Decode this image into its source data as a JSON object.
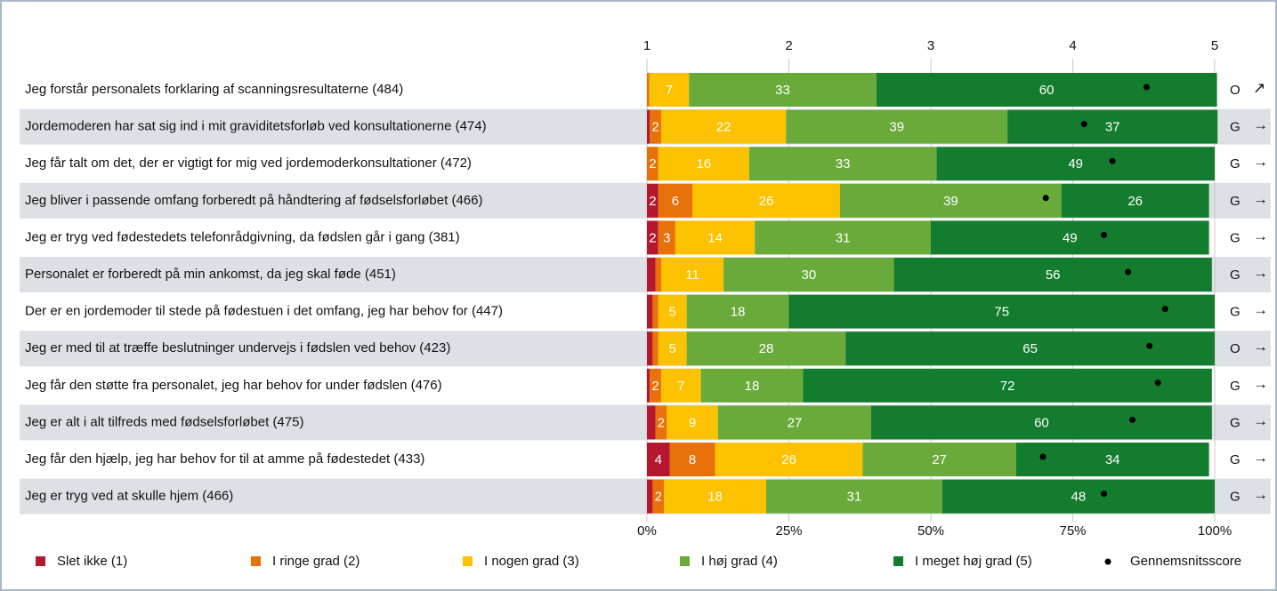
{
  "chart_data": {
    "type": "stacked_bar_horizontal",
    "categories": [
      "Jeg forstår personalets forklaring af scanningsresultaterne (484)",
      "Jordemoderen har sat sig ind i mit graviditetsforløb ved konsultationerne (474)",
      "Jeg får talt om det, der er vigtigt for mig ved jordemoderkonsultationer (472)",
      "Jeg bliver i passende omfang forberedt på håndtering af fødselsforløbet (466)",
      "Jeg er tryg ved fødestedets telefonrådgivning, da fødslen går i gang (381)",
      "Personalet er forberedt på min ankomst, da jeg skal føde (451)",
      "Der er en jordemoder til stede på fødestuen i det omfang, jeg har behov for (447)",
      "Jeg er med til at træffe beslutninger undervejs i fødslen ved behov (423)",
      "Jeg får den støtte fra personalet, jeg har behov for under fødslen (476)",
      "Jeg er alt i alt tilfreds med fødselsforløbet (475)",
      "Jeg får den hjælp, jeg har behov for til at amme på fødestedet (433)",
      "Jeg er tryg ved at skulle hjem (466)"
    ],
    "series": [
      {
        "name": "Slet ikke (1)",
        "color": "#b5172f",
        "values": [
          0,
          0.5,
          0,
          2,
          2,
          1.5,
          1,
          1,
          0.5,
          1.5,
          4,
          1
        ]
      },
      {
        "name": "I ringe grad (2)",
        "color": "#e8710a",
        "values": [
          0.4,
          2,
          2,
          6,
          3,
          1,
          1,
          1,
          2,
          2,
          8,
          2
        ]
      },
      {
        "name": "I nogen grad (3)",
        "color": "#fcc200",
        "values": [
          7,
          22,
          16,
          26,
          14,
          11,
          5,
          5,
          7,
          9,
          26,
          18
        ]
      },
      {
        "name": "I høj grad (4)",
        "color": "#6aaa3a",
        "values": [
          33,
          39,
          33,
          39,
          31,
          30,
          18,
          28,
          18,
          27,
          27,
          31
        ]
      },
      {
        "name": "I meget høj grad (5)",
        "color": "#137c2e",
        "values": [
          60,
          37,
          49,
          26,
          49,
          56,
          75,
          65,
          72,
          60,
          34,
          48
        ]
      }
    ],
    "mean": {
      "name": "Gennemsnitsscore",
      "color": "#000000",
      "axis": "x2",
      "values": [
        4.52,
        4.08,
        4.28,
        3.81,
        4.22,
        4.39,
        4.65,
        4.54,
        4.6,
        4.42,
        3.79,
        4.22
      ]
    },
    "status": [
      "O",
      "G",
      "G",
      "G",
      "G",
      "G",
      "G",
      "O",
      "G",
      "G",
      "G",
      "G"
    ],
    "trend": [
      "↗",
      "→",
      "→",
      "→",
      "→",
      "→",
      "→",
      "→",
      "→",
      "→",
      "→",
      "→"
    ],
    "trend_colors": [
      "#2e9a3a",
      "#777777",
      "#777777",
      "#777777",
      "#777777",
      "#777777",
      "#777777",
      "#777777",
      "#777777",
      "#777777",
      "#777777",
      "#777777"
    ],
    "xlim": [
      0,
      100
    ],
    "xticks": [
      {
        "value": 0,
        "label": "0%"
      },
      {
        "value": 25,
        "label": "25%"
      },
      {
        "value": 50,
        "label": "50%"
      },
      {
        "value": 75,
        "label": "75%"
      },
      {
        "value": 100,
        "label": "100%"
      }
    ],
    "x2lim": [
      1,
      5
    ],
    "x2ticks": [
      1,
      2,
      3,
      4,
      5
    ],
    "grid": true
  }
}
